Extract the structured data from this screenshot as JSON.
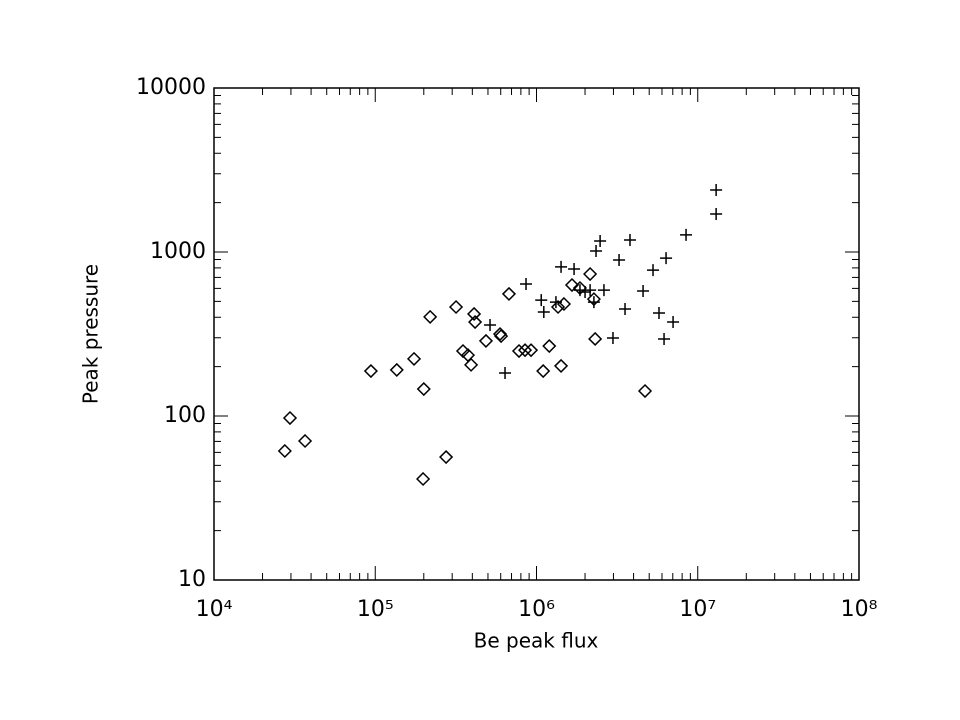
{
  "chart_data": {
    "type": "scatter",
    "xlabel": "Be peak flux",
    "ylabel": "Peak pressure",
    "log_x": true,
    "log_y": true,
    "xlim": [
      10000,
      100000000
    ],
    "ylim": [
      10,
      10000
    ],
    "xticks": [
      {
        "value": 10000,
        "label": "10⁴"
      },
      {
        "value": 100000,
        "label": "10⁵"
      },
      {
        "value": 1000000,
        "label": "10⁶"
      },
      {
        "value": 10000000,
        "label": "10⁷"
      },
      {
        "value": 100000000,
        "label": "10⁸"
      }
    ],
    "yticks": [
      10,
      100,
      1000,
      10000
    ],
    "series": [
      {
        "marker": "diamond",
        "color": "#000000",
        "x": [
          27500,
          29600,
          36700,
          94000,
          136000,
          174000,
          200000,
          219000,
          198000,
          275000,
          317000,
          350000,
          376000,
          393000,
          416000,
          410000,
          486000,
          594000,
          603000,
          675000,
          779000,
          849000,
          925000,
          1100000,
          1200000,
          1360000,
          1420000,
          1480000,
          1660000,
          1860000,
          2150000,
          2310000,
          2270000,
          4710000
        ],
        "y": [
          61.2,
          97.2,
          70.4,
          188,
          191,
          223,
          146,
          402,
          41.3,
          56.2,
          462,
          249,
          235,
          205,
          374,
          419,
          287,
          316,
          307,
          555,
          249,
          252,
          252,
          188,
          267,
          462,
          202,
          482,
          629,
          603,
          734,
          295,
          516,
          142
        ]
      },
      {
        "marker": "plus",
        "color": "#000000",
        "x": [
          515000,
          638000,
          861000,
          1070000,
          1110000,
          1320000,
          1420000,
          1710000,
          1860000,
          2000000,
          2150000,
          2270000,
          2340000,
          2480000,
          2620000,
          2980000,
          3250000,
          3540000,
          3800000,
          4580000,
          5280000,
          5750000,
          6180000,
          6360000,
          7030000,
          8460000,
          13000000,
          13000000
        ],
        "y": [
          359,
          183,
          638,
          509,
          431,
          495,
          811,
          787,
          586,
          570,
          586,
          495,
          1014,
          1167,
          586,
          299,
          894,
          449,
          1183,
          578,
          776,
          425,
          295,
          918,
          374,
          1271,
          2388,
          1706
        ]
      }
    ]
  }
}
